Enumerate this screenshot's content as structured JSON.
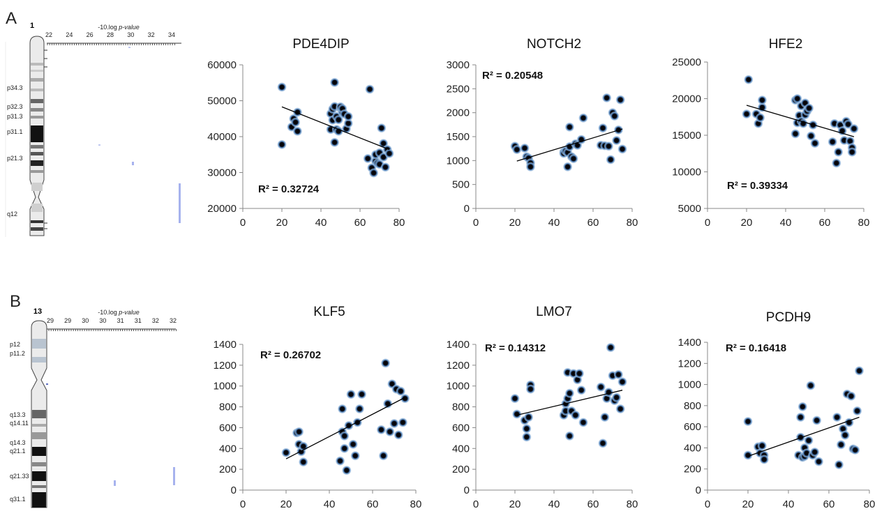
{
  "panels": [
    {
      "letter": "A",
      "chromosome": {
        "number": "1",
        "axis_title_prefix": "-10.log ",
        "axis_title_italic": "p-value",
        "ticks": [
          "22",
          "24",
          "26",
          "28",
          "30",
          "32",
          "34"
        ],
        "band_labels": [
          "p34.3",
          "p32.3",
          "p31.3",
          "p31.1",
          "p21.3",
          "q12"
        ]
      }
    },
    {
      "letter": "B",
      "chromosome": {
        "number": "13",
        "axis_title_prefix": "-10.log ",
        "axis_title_italic": "p-value",
        "ticks": [
          "29",
          "29",
          "30",
          "30",
          "31",
          "31",
          "32",
          "32"
        ],
        "band_labels": [
          "p12",
          "p11.2",
          "q13.3",
          "q14.11",
          "q14.3",
          "q21.1",
          "q21.33",
          "q31.1"
        ]
      }
    }
  ],
  "chart_data": [
    {
      "type": "scatter",
      "title": "PDE4DIP",
      "xlim": [
        0,
        80
      ],
      "ylim": [
        20000,
        60000
      ],
      "x_ticks": [
        "0",
        "20",
        "40",
        "60",
        "80"
      ],
      "y_ticks": [
        "20000",
        "30000",
        "40000",
        "50000",
        "60000"
      ],
      "annotation": "R² = 0.32724",
      "trendline": [
        [
          20,
          48300
        ],
        [
          75,
          36400
        ]
      ],
      "x": [
        20,
        20,
        25,
        26,
        27,
        28,
        28,
        45,
        45,
        46,
        46,
        47,
        47,
        47,
        48,
        48,
        49,
        49,
        50,
        50,
        51,
        51,
        52,
        53,
        54,
        54,
        64,
        65,
        66,
        67,
        68,
        68,
        69,
        70,
        70,
        71,
        72,
        72,
        73,
        74,
        75
      ],
      "y": [
        37800,
        53800,
        42700,
        45000,
        44000,
        41500,
        46800,
        42000,
        46400,
        47700,
        44600,
        48400,
        38400,
        55100,
        45600,
        42000,
        44700,
        41500,
        47900,
        48300,
        46800,
        47800,
        46300,
        42200,
        43700,
        45600,
        33900,
        53200,
        31300,
        29900,
        33200,
        35000,
        32600,
        32300,
        35500,
        42400,
        38100,
        34300,
        31500,
        36400,
        35300
      ]
    },
    {
      "type": "scatter",
      "title": "NOTCH2",
      "xlim": [
        0,
        80
      ],
      "ylim": [
        0,
        3000
      ],
      "x_ticks": [
        "0",
        "20",
        "40",
        "60",
        "80"
      ],
      "y_ticks": [
        "0",
        "500",
        "1000",
        "1500",
        "2000",
        "2500",
        "3000"
      ],
      "annotation": "R² = 0.20548",
      "trendline": [
        [
          21,
          990
        ],
        [
          75,
          1660
        ]
      ],
      "x": [
        20,
        21,
        25,
        26,
        27,
        28,
        28,
        45,
        45,
        46,
        47,
        47,
        48,
        48,
        49,
        50,
        51,
        52,
        54,
        55,
        64,
        65,
        66,
        67,
        68,
        69,
        70,
        71,
        72,
        73,
        74,
        75
      ],
      "y": [
        1300,
        1230,
        1260,
        1080,
        1050,
        950,
        870,
        1180,
        1150,
        1200,
        1170,
        870,
        1290,
        1700,
        1080,
        1040,
        1350,
        1320,
        1440,
        1890,
        1320,
        1680,
        1310,
        2310,
        1300,
        1020,
        2000,
        1930,
        1420,
        1640,
        2270,
        1240
      ]
    },
    {
      "type": "scatter",
      "title": "HFE2",
      "xlim": [
        0,
        80
      ],
      "ylim": [
        5000,
        25000
      ],
      "x_ticks": [
        "0",
        "20",
        "40",
        "60",
        "80"
      ],
      "y_ticks": [
        "5000",
        "10000",
        "15000",
        "20000",
        "25000"
      ],
      "annotation": "R² = 0.39334",
      "trendline": [
        [
          20,
          19100
        ],
        [
          75,
          14800
        ]
      ],
      "x": [
        20,
        21,
        25,
        26,
        27,
        28,
        28,
        45,
        45,
        46,
        46,
        47,
        48,
        48,
        49,
        50,
        50,
        51,
        52,
        53,
        54,
        55,
        64,
        65,
        66,
        67,
        68,
        69,
        70,
        71,
        72,
        73,
        74,
        74,
        75
      ],
      "y": [
        17900,
        22600,
        17900,
        16600,
        17400,
        18800,
        19800,
        15200,
        19800,
        20000,
        16700,
        17700,
        16900,
        19000,
        16600,
        19400,
        17800,
        18300,
        18700,
        14900,
        16400,
        13900,
        14100,
        16600,
        11200,
        12700,
        16400,
        15600,
        14300,
        16900,
        16500,
        14200,
        13300,
        12700,
        15900
      ]
    },
    {
      "type": "scatter",
      "title": "KLF5",
      "xlim": [
        0,
        80
      ],
      "ylim": [
        0,
        1400
      ],
      "x_ticks": [
        "0",
        "20",
        "40",
        "60",
        "80"
      ],
      "y_ticks": [
        "0",
        "200",
        "400",
        "600",
        "800",
        "1000",
        "1200",
        "1400"
      ],
      "annotation": "R² = 0.26702",
      "trendline": [
        [
          20,
          300
        ],
        [
          75,
          890
        ]
      ],
      "x": [
        20,
        25,
        26,
        26,
        27,
        28,
        28,
        45,
        46,
        46,
        47,
        47,
        48,
        49,
        50,
        51,
        52,
        53,
        54,
        55,
        64,
        65,
        66,
        67,
        68,
        69,
        70,
        71,
        72,
        73,
        74,
        75
      ],
      "y": [
        360,
        550,
        440,
        560,
        370,
        420,
        270,
        280,
        560,
        780,
        400,
        520,
        190,
        620,
        920,
        440,
        330,
        650,
        780,
        920,
        580,
        330,
        1220,
        830,
        560,
        1020,
        640,
        970,
        530,
        950,
        650,
        880
      ]
    },
    {
      "type": "scatter",
      "title": "LMO7",
      "xlim": [
        0,
        80
      ],
      "ylim": [
        0,
        1400
      ],
      "x_ticks": [
        "0",
        "20",
        "40",
        "60",
        "80"
      ],
      "y_ticks": [
        "0",
        "200",
        "400",
        "600",
        "800",
        "1000",
        "1200",
        "1400"
      ],
      "annotation": "R² = 0.14312",
      "trendline": [
        [
          21,
          720
        ],
        [
          75,
          960
        ]
      ],
      "x": [
        20,
        21,
        25,
        26,
        26,
        27,
        28,
        28,
        45,
        46,
        46,
        47,
        47,
        48,
        48,
        49,
        50,
        51,
        52,
        53,
        54,
        55,
        64,
        65,
        66,
        67,
        68,
        69,
        70,
        71,
        72,
        73,
        74,
        75
      ],
      "y": [
        880,
        730,
        670,
        590,
        510,
        700,
        1010,
        970,
        720,
        830,
        760,
        1130,
        880,
        520,
        930,
        760,
        1120,
        720,
        1060,
        1120,
        960,
        650,
        990,
        450,
        700,
        880,
        940,
        1370,
        1100,
        860,
        890,
        1110,
        780,
        1040
      ]
    },
    {
      "type": "scatter",
      "title": "PCDH9",
      "xlim": [
        0,
        80
      ],
      "ylim": [
        0,
        1400
      ],
      "x_ticks": [
        "0",
        "20",
        "40",
        "60",
        "80"
      ],
      "y_ticks": [
        "0",
        "200",
        "400",
        "600",
        "800",
        "1000",
        "1200",
        "1400"
      ],
      "annotation": "R² = 0.16418",
      "trendline": [
        [
          20,
          320
        ],
        [
          75,
          690
        ]
      ],
      "x": [
        20,
        20,
        25,
        26,
        27,
        28,
        28,
        45,
        46,
        46,
        47,
        47,
        48,
        48,
        49,
        50,
        51,
        52,
        53,
        54,
        55,
        64,
        65,
        66,
        67,
        68,
        69,
        70,
        71,
        72,
        73,
        74,
        75
      ],
      "y": [
        650,
        330,
        410,
        350,
        420,
        330,
        290,
        330,
        500,
        690,
        310,
        790,
        320,
        400,
        350,
        470,
        990,
        330,
        360,
        660,
        270,
        690,
        240,
        430,
        580,
        520,
        910,
        640,
        890,
        390,
        380,
        750,
        1130
      ]
    }
  ]
}
